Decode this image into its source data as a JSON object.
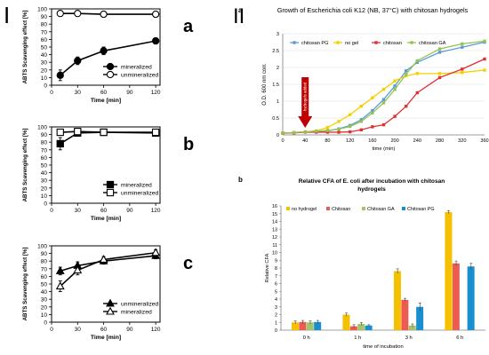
{
  "figure": {
    "label_I": "I",
    "label_II": "II"
  },
  "chart_data": [
    {
      "panel": "I-a",
      "letter": "a",
      "type": "line",
      "ylabel": "ABTS Scavenging effect [%]",
      "xlabel": "Time [min]",
      "x_ticks": [
        0,
        30,
        60,
        90,
        120
      ],
      "y_ticks": [
        0,
        10,
        20,
        30,
        40,
        50,
        60,
        70,
        80,
        90,
        100
      ],
      "xlim": [
        0,
        125
      ],
      "ylim": [
        0,
        100
      ],
      "series": [
        {
          "name": "mineralized",
          "marker": "circle",
          "fill": "#000000",
          "x": [
            10,
            30,
            60,
            120
          ],
          "y": [
            13,
            32,
            45,
            58
          ],
          "err": [
            7,
            5,
            5,
            4
          ]
        },
        {
          "name": "unmineralized",
          "marker": "circle",
          "fill": "#ffffff",
          "x": [
            10,
            30,
            60,
            120
          ],
          "y": [
            94,
            94,
            93,
            93
          ],
          "err": [
            3,
            3,
            2,
            2
          ]
        }
      ]
    },
    {
      "panel": "I-b",
      "letter": "b",
      "type": "line",
      "ylabel": "ABTS Scavenging effect [%]",
      "xlabel": "Time [min]",
      "x_ticks": [
        0,
        30,
        60,
        90,
        120
      ],
      "y_ticks": [
        0,
        10,
        20,
        30,
        40,
        50,
        60,
        70,
        80,
        90,
        100
      ],
      "xlim": [
        0,
        125
      ],
      "ylim": [
        0,
        100
      ],
      "series": [
        {
          "name": "mineralized",
          "marker": "square",
          "fill": "#000000",
          "x": [
            10,
            30,
            60,
            120
          ],
          "y": [
            78,
            92,
            93,
            92
          ],
          "err": [
            8,
            4,
            3,
            3
          ]
        },
        {
          "name": "unmineralized",
          "marker": "square",
          "fill": "#ffffff",
          "x": [
            10,
            30,
            60,
            120
          ],
          "y": [
            93,
            94,
            93,
            93
          ],
          "err": [
            4,
            3,
            3,
            3
          ]
        }
      ]
    },
    {
      "panel": "I-c",
      "letter": "c",
      "type": "line",
      "ylabel": "ABTS Scavenging effect [%]",
      "xlabel": "Time [min]",
      "x_ticks": [
        0,
        30,
        60,
        90,
        120
      ],
      "y_ticks": [
        0,
        10,
        20,
        30,
        40,
        50,
        60,
        70,
        80,
        90,
        100
      ],
      "xlim": [
        0,
        125
      ],
      "ylim": [
        0,
        100
      ],
      "series": [
        {
          "name": "unmineralized",
          "marker": "triangle",
          "fill": "#000000",
          "x": [
            10,
            30,
            60,
            120
          ],
          "y": [
            67,
            74,
            80,
            87
          ],
          "err": [
            5,
            5,
            4,
            4
          ]
        },
        {
          "name": "mineralized",
          "marker": "triangle",
          "fill": "#ffffff",
          "x": [
            10,
            30,
            60,
            120
          ],
          "y": [
            47,
            68,
            82,
            91
          ],
          "err": [
            7,
            6,
            4,
            4
          ]
        }
      ]
    },
    {
      "panel": "II-a",
      "letter": "a",
      "type": "line",
      "title": "Growth of Escherichia coli K12 (NB, 37°C) with chitosan hydrogels",
      "ylabel": "O.D. 600 nm corr.",
      "xlabel": "time (min)",
      "x_ticks": [
        0,
        40,
        80,
        120,
        160,
        200,
        240,
        280,
        320,
        360
      ],
      "y_ticks": [
        0,
        0.5,
        1,
        1.5,
        2,
        2.5,
        3
      ],
      "xlim": [
        0,
        360
      ],
      "ylim": [
        0,
        3
      ],
      "annotation": {
        "text": "hydrogels added",
        "x": 40
      },
      "series": [
        {
          "name": "chitosan PG",
          "color": "#5b9bd5",
          "x": [
            0,
            20,
            40,
            60,
            80,
            100,
            120,
            140,
            160,
            180,
            200,
            220,
            240,
            280,
            320,
            360
          ],
          "y": [
            0.05,
            0.07,
            0.09,
            0.1,
            0.12,
            0.18,
            0.28,
            0.45,
            0.72,
            1.05,
            1.45,
            1.9,
            2.15,
            2.45,
            2.6,
            2.75
          ]
        },
        {
          "name": "no gel",
          "color": "#f5d000",
          "x": [
            0,
            20,
            40,
            60,
            80,
            100,
            120,
            140,
            160,
            180,
            200,
            220,
            240,
            280,
            320,
            360
          ],
          "y": [
            0.05,
            0.07,
            0.09,
            0.12,
            0.22,
            0.4,
            0.6,
            0.85,
            1.1,
            1.35,
            1.6,
            1.75,
            1.82,
            1.82,
            1.85,
            1.92
          ]
        },
        {
          "name": "chitosan",
          "color": "#e03030",
          "x": [
            0,
            20,
            40,
            60,
            80,
            100,
            120,
            140,
            160,
            180,
            200,
            220,
            240,
            280,
            320,
            360
          ],
          "y": [
            0.05,
            0.06,
            0.08,
            0.08,
            0.08,
            0.08,
            0.09,
            0.15,
            0.24,
            0.3,
            0.55,
            0.85,
            1.25,
            1.7,
            1.95,
            2.25
          ]
        },
        {
          "name": "chitosan GA",
          "color": "#92c353",
          "x": [
            0,
            20,
            40,
            60,
            80,
            100,
            120,
            140,
            160,
            180,
            200,
            220,
            240,
            280,
            320,
            360
          ],
          "y": [
            0.05,
            0.07,
            0.09,
            0.11,
            0.13,
            0.17,
            0.25,
            0.4,
            0.65,
            0.95,
            1.35,
            1.8,
            2.2,
            2.55,
            2.7,
            2.78
          ]
        }
      ]
    },
    {
      "panel": "II-b",
      "letter": "b",
      "type": "bar",
      "title": "Relative CFA of E. coli after incubation with chitosan hydrogels",
      "ylabel": "Relative CFA",
      "xlabel": "time of incubation",
      "categories": [
        "0 h",
        "1 h",
        "3 h",
        "6 h"
      ],
      "y_ticks": [
        0,
        1,
        2,
        3,
        4,
        5,
        6,
        7,
        8,
        9,
        10,
        11,
        12,
        13,
        14,
        15,
        16
      ],
      "ylim": [
        0,
        16
      ],
      "series": [
        {
          "name": "no hydrogel",
          "color": "#f5c000",
          "values": [
            1.0,
            2.0,
            7.6,
            15.2
          ],
          "err": [
            0.2,
            0.2,
            0.3,
            0.2
          ]
        },
        {
          "name": "Chitosan",
          "color": "#ec5a50",
          "values": [
            1.05,
            0.5,
            3.9,
            8.6
          ],
          "err": [
            0.2,
            0.2,
            0.2,
            0.3
          ]
        },
        {
          "name": "Chitosan GA",
          "color": "#a3c567",
          "values": [
            1.0,
            0.8,
            0.6,
            0.0
          ],
          "err": [
            0.2,
            0.2,
            0.2,
            0.0
          ]
        },
        {
          "name": "Chitosan PG",
          "color": "#1a8fd0",
          "values": [
            1.05,
            0.6,
            3.0,
            8.2
          ],
          "err": [
            0.2,
            0.1,
            0.5,
            0.4
          ]
        }
      ]
    }
  ]
}
